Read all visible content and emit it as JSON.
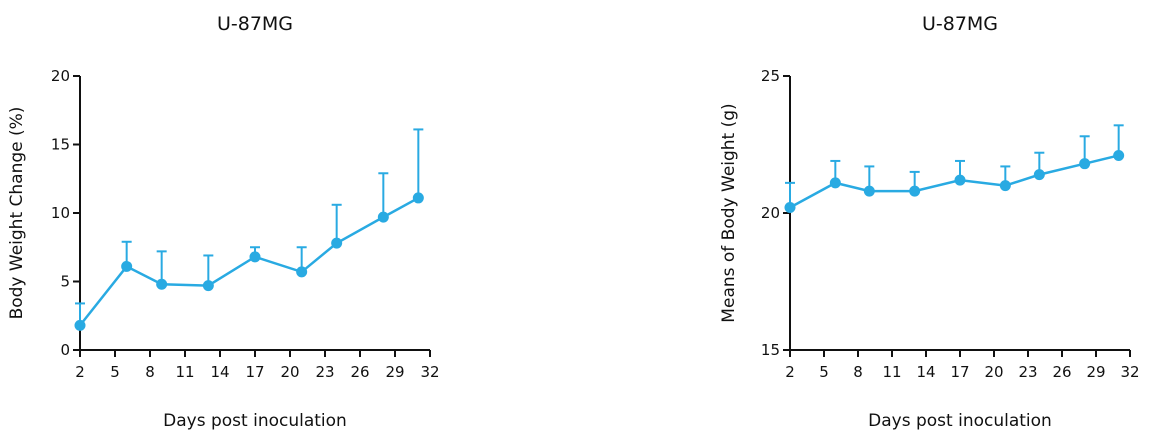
{
  "chart_data": [
    {
      "type": "line",
      "title": "U-87MG",
      "xlabel": "Days post inoculation",
      "ylabel": "Body Weight Change (%)",
      "x_ticks": [
        2,
        5,
        8,
        11,
        14,
        17,
        20,
        23,
        26,
        29,
        32
      ],
      "y_ticks": [
        0,
        5,
        10,
        15,
        20
      ],
      "xlim": [
        2,
        32
      ],
      "ylim": [
        0,
        20
      ],
      "color": "#29aae2",
      "series": [
        {
          "x": [
            2,
            6,
            9,
            13,
            17,
            21,
            24,
            28,
            31
          ],
          "y": [
            1.8,
            6.1,
            4.8,
            4.7,
            6.8,
            5.7,
            7.8,
            9.7,
            11.1
          ],
          "error_upper": [
            1.6,
            1.8,
            2.4,
            2.2,
            0.7,
            1.8,
            2.8,
            3.2,
            5.0
          ]
        }
      ]
    },
    {
      "type": "line",
      "title": "U-87MG",
      "xlabel": "Days post inoculation",
      "ylabel": "Means of Body Weight (g)",
      "x_ticks": [
        2,
        5,
        8,
        11,
        14,
        17,
        20,
        23,
        26,
        29,
        32
      ],
      "y_ticks": [
        15,
        20,
        25
      ],
      "xlim": [
        2,
        32
      ],
      "ylim": [
        15,
        25
      ],
      "color": "#29aae2",
      "series": [
        {
          "x": [
            2,
            6,
            9,
            13,
            17,
            21,
            24,
            28,
            31
          ],
          "y": [
            20.2,
            21.1,
            20.8,
            20.8,
            21.2,
            21.0,
            21.4,
            21.8,
            22.1
          ],
          "error_upper": [
            0.9,
            0.8,
            0.9,
            0.7,
            0.7,
            0.7,
            0.8,
            1.0,
            1.1
          ]
        }
      ]
    }
  ]
}
